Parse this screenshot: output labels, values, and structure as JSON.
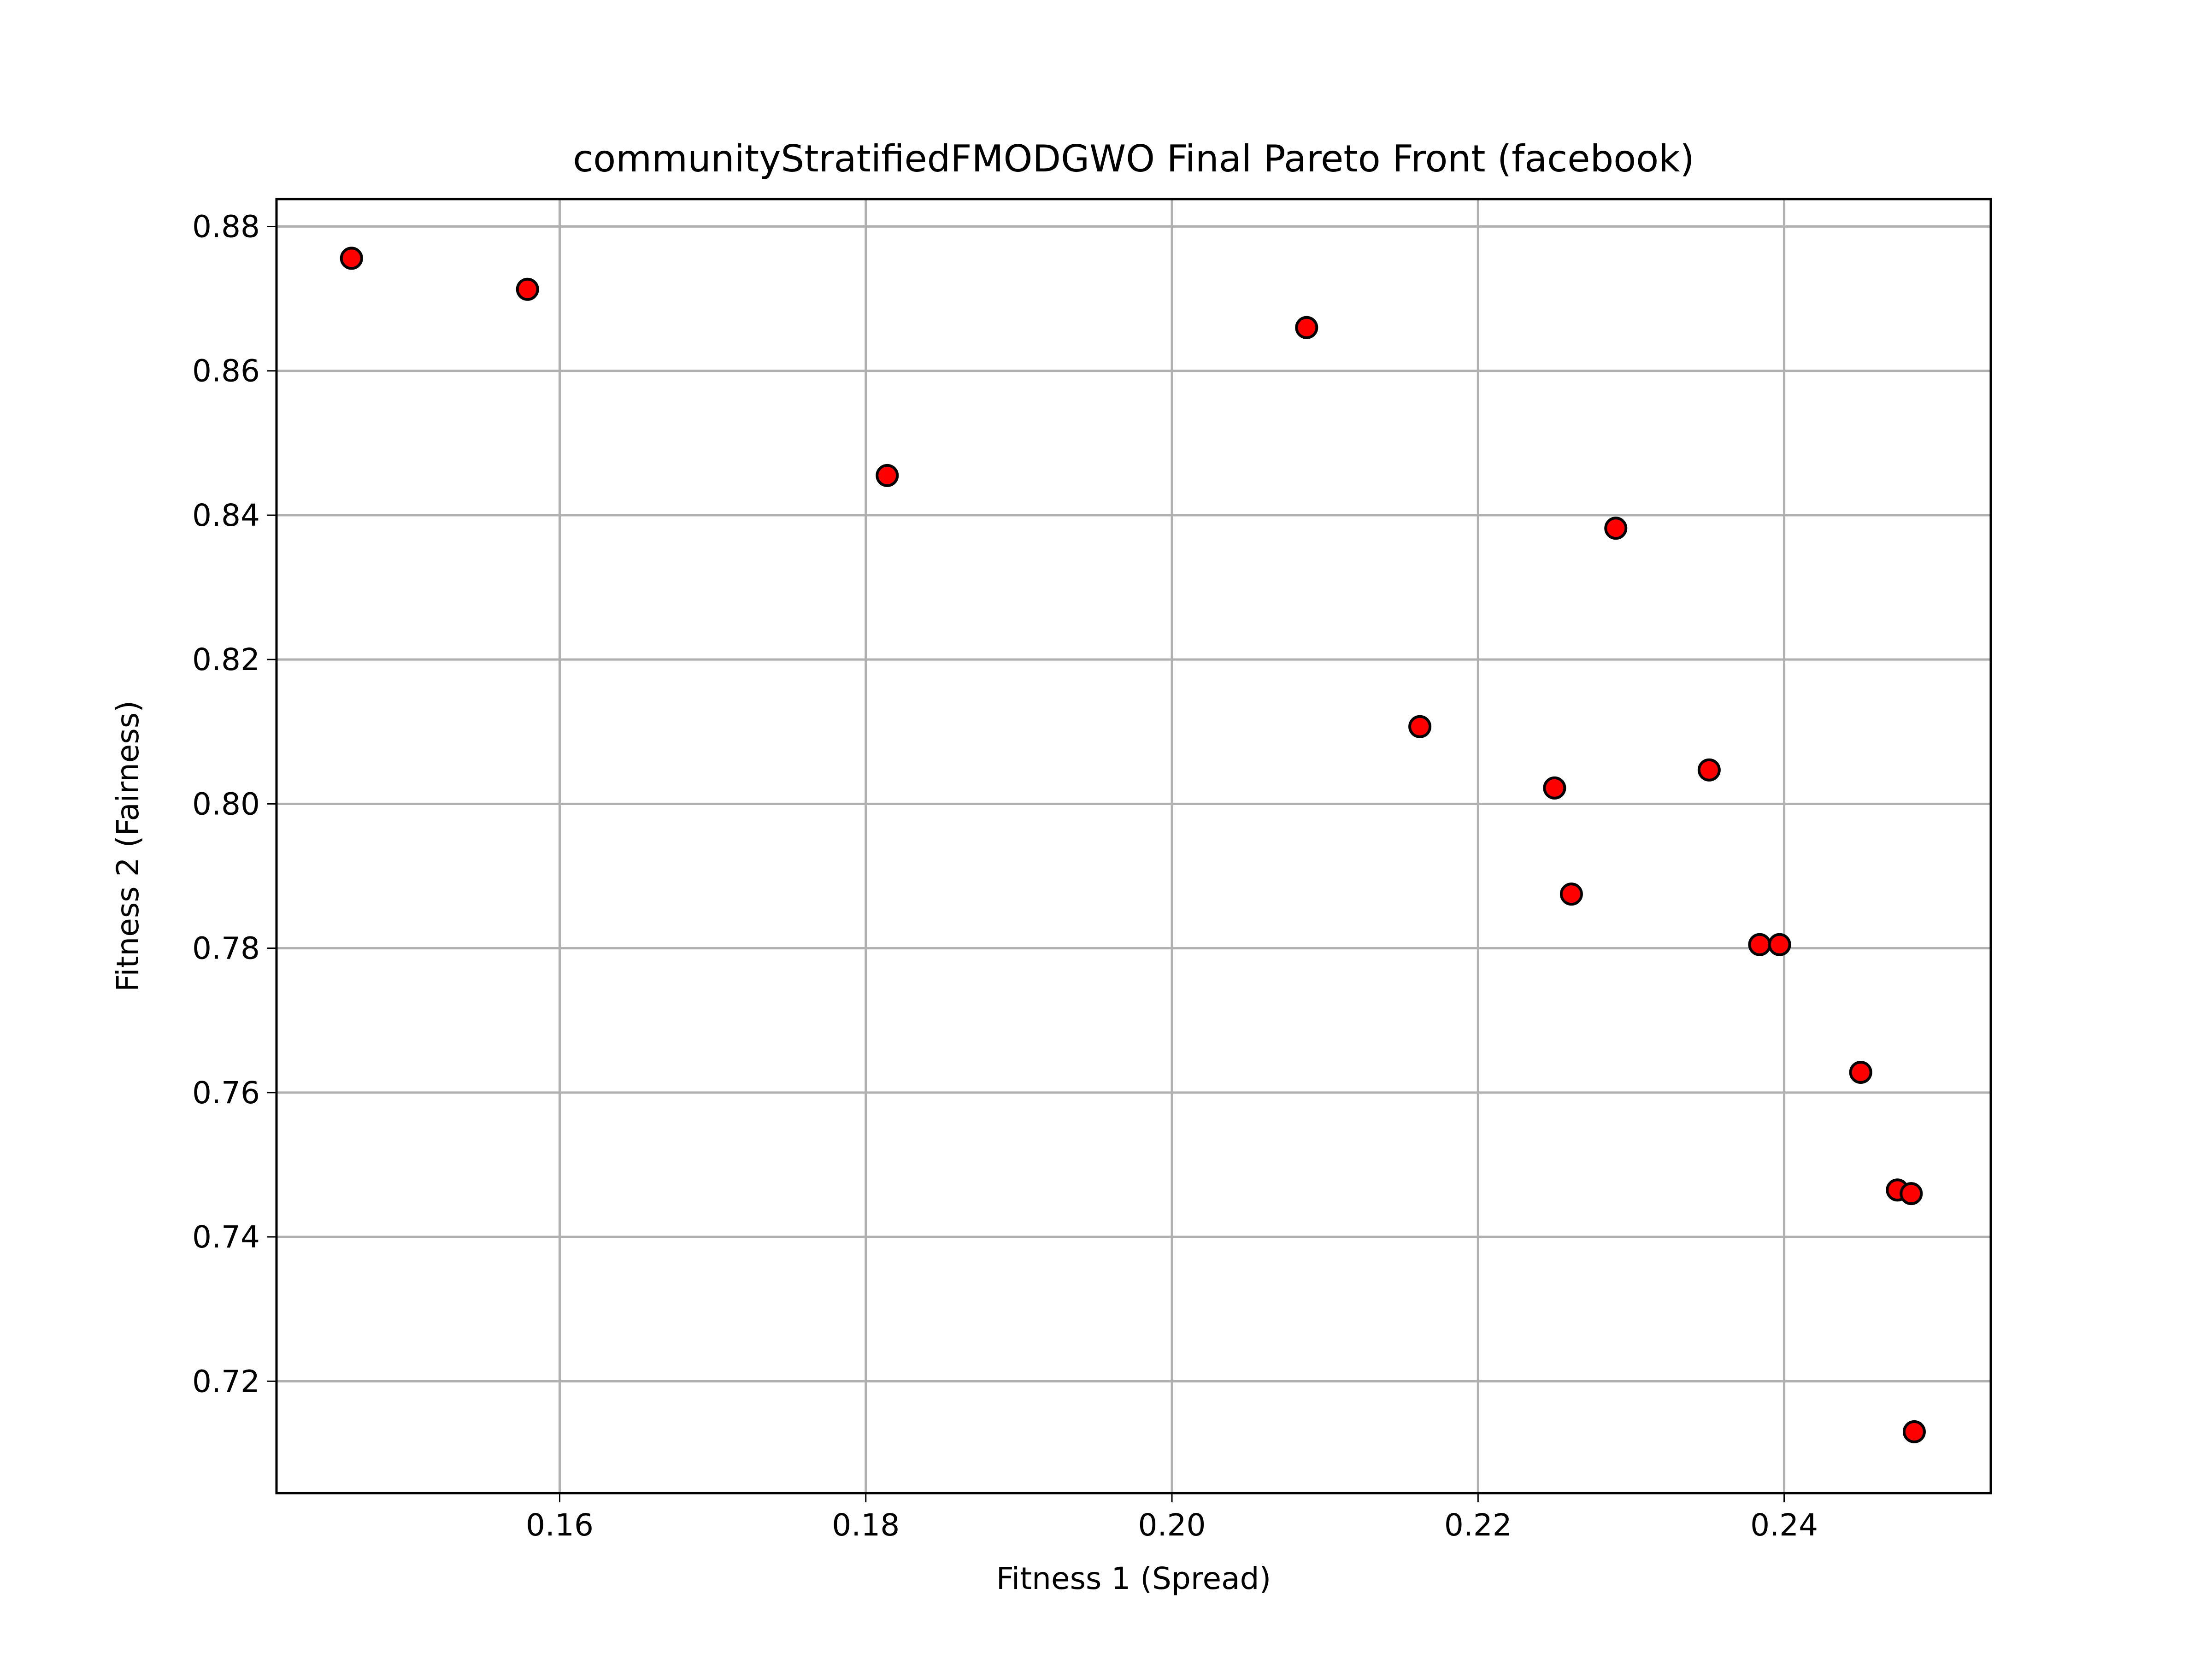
{
  "chart_data": {
    "type": "scatter",
    "title": "communityStratifiedFMODGWO Final Pareto Front (facebook)",
    "xlabel": "Fitness 1 (Spread)",
    "ylabel": "Fitness 2 (Fairness)",
    "xlim": [
      0.1415,
      0.2535
    ],
    "ylim": [
      0.7045,
      0.8838
    ],
    "xticks": [
      0.16,
      0.18,
      0.2,
      0.22,
      0.24
    ],
    "xtick_labels": [
      "0.16",
      "0.18",
      "0.20",
      "0.22",
      "0.24"
    ],
    "yticks": [
      0.72,
      0.74,
      0.76,
      0.78,
      0.8,
      0.82,
      0.84,
      0.86,
      0.88
    ],
    "ytick_labels": [
      "0.72",
      "0.74",
      "0.76",
      "0.78",
      "0.80",
      "0.82",
      "0.84",
      "0.86",
      "0.88"
    ],
    "grid": true,
    "marker_color": "#ff0000",
    "marker_edge_color": "#000000",
    "points": [
      {
        "x": 0.1464,
        "y": 0.8756
      },
      {
        "x": 0.1579,
        "y": 0.8713
      },
      {
        "x": 0.1814,
        "y": 0.8455
      },
      {
        "x": 0.2088,
        "y": 0.866
      },
      {
        "x": 0.2162,
        "y": 0.8107
      },
      {
        "x": 0.225,
        "y": 0.8022
      },
      {
        "x": 0.2261,
        "y": 0.7875
      },
      {
        "x": 0.229,
        "y": 0.8382
      },
      {
        "x": 0.2351,
        "y": 0.8047
      },
      {
        "x": 0.2384,
        "y": 0.7805
      },
      {
        "x": 0.2397,
        "y": 0.7805
      },
      {
        "x": 0.245,
        "y": 0.7628
      },
      {
        "x": 0.2474,
        "y": 0.7465
      },
      {
        "x": 0.2483,
        "y": 0.746
      },
      {
        "x": 0.2485,
        "y": 0.713
      }
    ]
  }
}
